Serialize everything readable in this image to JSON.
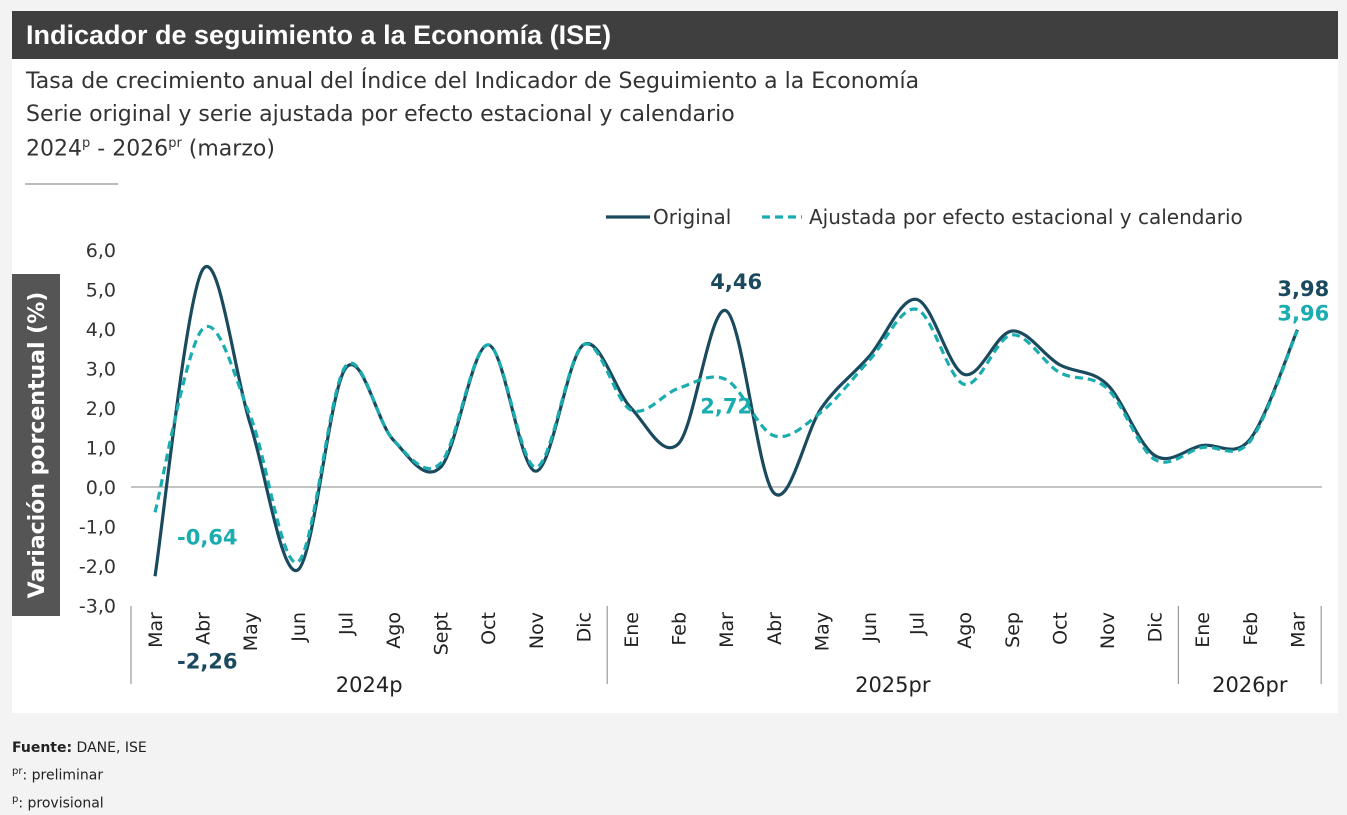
{
  "header": {
    "title": "Indicador de seguimiento a la Economía (ISE)",
    "subtitle_1": "Tasa de crecimiento anual del Índice del Indicador de Seguimiento a la Economía",
    "subtitle_2": "Serie original y serie ajustada por efecto estacional y calendario",
    "subtitle_3_a": "2024",
    "subtitle_3_sup_a": "p",
    "subtitle_3_b": " - 2026",
    "subtitle_3_sup_b": "pr",
    "subtitle_3_c": " (marzo)"
  },
  "footer": {
    "source_label": "Fuente:",
    "source_value": " DANE, ISE",
    "note1_sup": "pr",
    "note1_text": ": preliminar",
    "note2_sup": "p",
    "note2_text": ": provisional"
  },
  "colors": {
    "original": "#1b4a5e",
    "adjusted": "#1aadb0",
    "ylabel_bg": "#555555"
  },
  "chart_data": {
    "type": "line",
    "ylabel": "Variación porcentual (%)",
    "ylim": [
      -3.0,
      6.0
    ],
    "yticks": [
      "6,0",
      "5,0",
      "4,0",
      "3,0",
      "2,0",
      "1,0",
      "0,0",
      "-1,0",
      "-2,0",
      "-3,0"
    ],
    "ytick_values": [
      6,
      5,
      4,
      3,
      2,
      1,
      0,
      -1,
      -2,
      -3
    ],
    "legend_position": "top-right",
    "categories": [
      "Mar",
      "Abr",
      "May",
      "Jun",
      "Jul",
      "Ago",
      "Sept",
      "Oct",
      "Nov",
      "Dic",
      "Ene",
      "Feb",
      "Mar",
      "Abr",
      "May",
      "Jun",
      "Jul",
      "Ago",
      "Sep",
      "Oct",
      "Nov",
      "Dic",
      "Ene",
      "Feb",
      "Mar"
    ],
    "year_groups": [
      {
        "label": "2024p",
        "count": 10
      },
      {
        "label": "2025pr",
        "count": 12
      },
      {
        "label": "2026pr",
        "count": 3
      }
    ],
    "series": [
      {
        "name": "Original",
        "values": [
          -2.26,
          5.5,
          1.6,
          -2.1,
          3.0,
          1.2,
          0.5,
          3.6,
          0.4,
          3.6,
          2.0,
          1.1,
          4.46,
          -0.15,
          2.0,
          3.3,
          4.75,
          2.85,
          3.95,
          3.1,
          2.6,
          0.8,
          1.05,
          1.2,
          3.98
        ]
      },
      {
        "name": "Ajustada por efecto estacional y calendario",
        "values": [
          -0.64,
          4.0,
          1.8,
          -1.9,
          3.05,
          1.2,
          0.6,
          3.6,
          0.5,
          3.6,
          1.95,
          2.5,
          2.72,
          1.3,
          1.9,
          3.2,
          4.5,
          2.6,
          3.85,
          2.9,
          2.5,
          0.7,
          1.0,
          1.15,
          3.96
        ]
      }
    ],
    "annotations": [
      {
        "text": "-2,26",
        "series": 0,
        "index": 0
      },
      {
        "text": "-0,64",
        "series": 1,
        "index": 0
      },
      {
        "text": "4,46",
        "series": 0,
        "index": 12
      },
      {
        "text": "2,72",
        "series": 1,
        "index": 12
      },
      {
        "text": "3,98",
        "series": 0,
        "index": 24
      },
      {
        "text": "3,96",
        "series": 1,
        "index": 24
      }
    ]
  }
}
